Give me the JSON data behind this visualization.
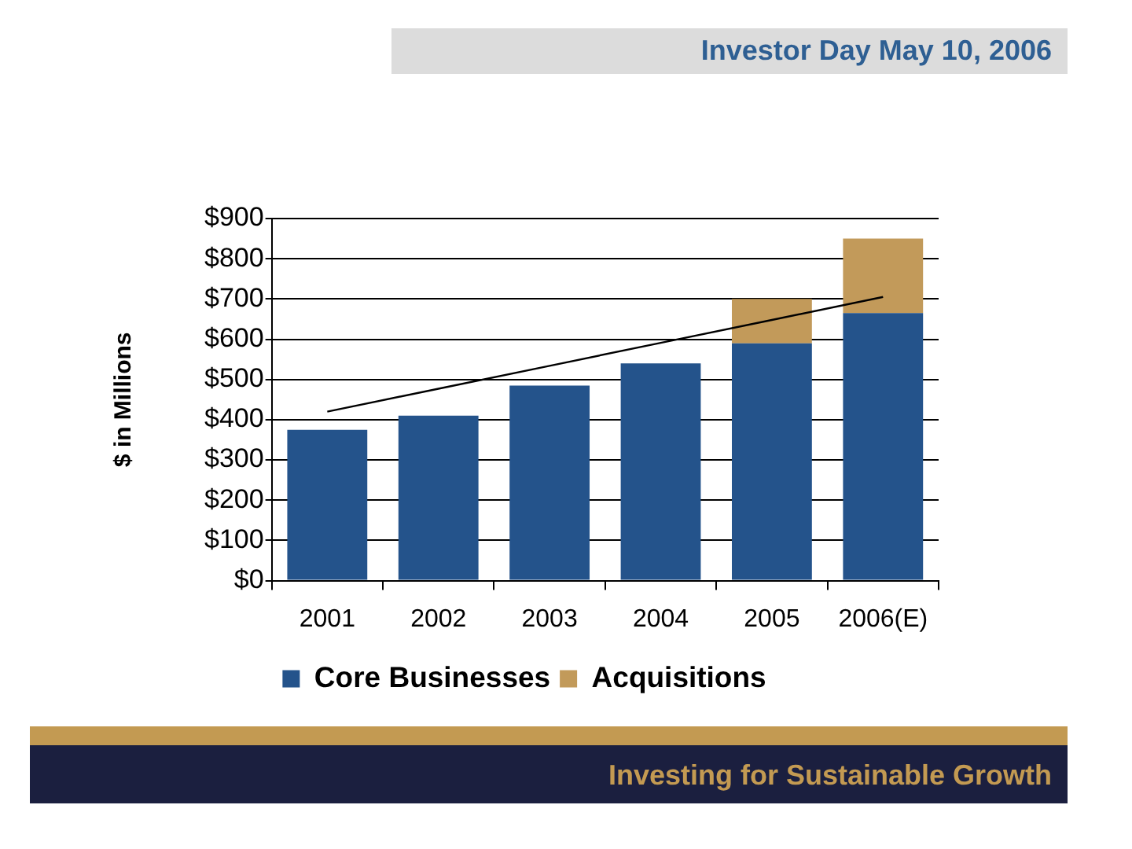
{
  "chart_data": {
    "type": "bar",
    "title": "Investor Day May 10, 2006",
    "ylabel": "$ in Millions",
    "categories": [
      "2001",
      "2002",
      "2003",
      "2004",
      "2005",
      "2006(E)"
    ],
    "stacked": true,
    "series": [
      {
        "name": "Core Businesses",
        "color": "#24538b",
        "values": [
          375,
          410,
          485,
          540,
          590,
          665
        ]
      },
      {
        "name": "Acquisitions",
        "color": "#c29a5a",
        "values": [
          null,
          null,
          null,
          null,
          110,
          185
        ]
      },
      {
        "type": "line",
        "color": "#000000",
        "values": [
          420,
          477,
          534,
          591,
          648,
          705
        ]
      }
    ],
    "ylim": [
      0,
      900
    ],
    "yticks": [
      {
        "value": 0,
        "label": "$0"
      },
      {
        "value": 100,
        "label": "$100"
      },
      {
        "value": 200,
        "label": "$200"
      },
      {
        "value": 300,
        "label": "$300"
      },
      {
        "value": 400,
        "label": "$400"
      },
      {
        "value": 500,
        "label": "$500"
      },
      {
        "value": 600,
        "label": "$600"
      },
      {
        "value": 700,
        "label": "$700"
      },
      {
        "value": 800,
        "label": "$800"
      },
      {
        "value": 900,
        "label": "$900"
      }
    ],
    "grid": "y",
    "legend": "bottom",
    "marker": "none",
    "annotations": [
      "Investing for Sustainable Growth"
    ]
  }
}
